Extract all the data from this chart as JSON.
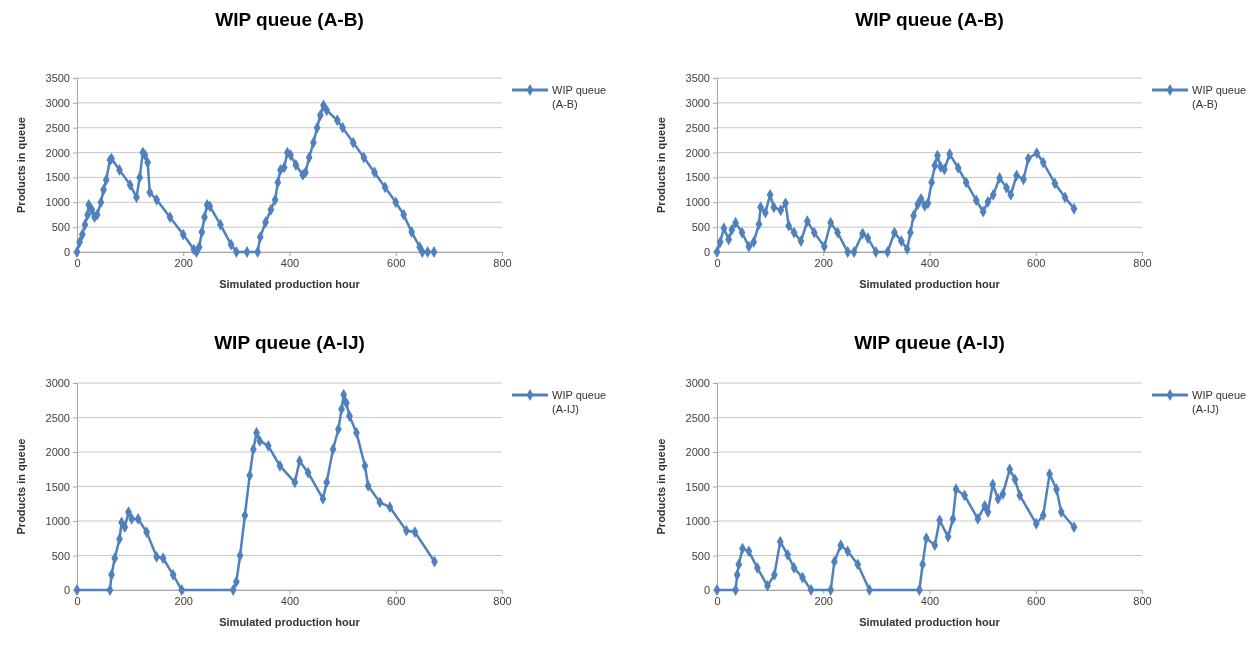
{
  "chart_data": [
    {
      "type": "line",
      "title": "WIP queue (A-B)",
      "xlabel": "Simulated production hour",
      "ylabel": "Products in queue",
      "xlim": [
        0,
        800
      ],
      "ylim": [
        0,
        3500
      ],
      "xticks": [
        0,
        200,
        400,
        600,
        800
      ],
      "yticks": [
        0,
        500,
        1000,
        1500,
        2000,
        2500,
        3000,
        3500
      ],
      "grid": "y",
      "legend": "right",
      "marker": "diamond",
      "x": [
        0,
        5,
        10,
        15,
        20,
        22,
        28,
        33,
        38,
        45,
        50,
        55,
        62,
        65,
        80,
        100,
        112,
        118,
        124,
        128,
        133,
        137,
        150,
        175,
        200,
        220,
        225,
        230,
        235,
        240,
        245,
        250,
        270,
        290,
        300,
        320,
        340,
        345,
        355,
        365,
        373,
        378,
        383,
        390,
        396,
        402,
        412,
        425,
        430,
        437,
        445,
        452,
        458,
        464,
        470,
        490,
        500,
        520,
        540,
        560,
        580,
        600,
        615,
        630,
        645,
        650,
        660,
        672
      ],
      "series": [
        {
          "name": "WIP queue (A-B)",
          "color": "#4f81bd",
          "values": [
            0,
            200,
            350,
            550,
            750,
            950,
            850,
            700,
            750,
            1000,
            1250,
            1450,
            1850,
            1880,
            1650,
            1350,
            1100,
            1500,
            2000,
            1950,
            1800,
            1200,
            1050,
            700,
            350,
            50,
            0,
            100,
            400,
            700,
            950,
            920,
            550,
            150,
            0,
            0,
            0,
            300,
            600,
            850,
            1050,
            1400,
            1650,
            1700,
            2000,
            1950,
            1750,
            1550,
            1600,
            1900,
            2200,
            2500,
            2750,
            2950,
            2850,
            2650,
            2500,
            2200,
            1900,
            1600,
            1300,
            1000,
            750,
            400,
            100,
            0,
            0,
            0
          ]
        }
      ]
    },
    {
      "type": "line",
      "title": "WIP queue (A-B)",
      "xlabel": "Simulated production hour",
      "ylabel": "Products in queue",
      "xlim": [
        0,
        800
      ],
      "ylim": [
        0,
        3500
      ],
      "xticks": [
        0,
        200,
        400,
        600,
        800
      ],
      "yticks": [
        0,
        500,
        1000,
        1500,
        2000,
        2500,
        3000,
        3500
      ],
      "grid": "y",
      "legend": "right",
      "marker": "diamond",
      "x": [
        0,
        6,
        13,
        22,
        28,
        35,
        47,
        60,
        69,
        79,
        82,
        91,
        100,
        107,
        120,
        129,
        135,
        145,
        158,
        170,
        183,
        202,
        214,
        227,
        246,
        258,
        274,
        284,
        299,
        321,
        334,
        347,
        358,
        364,
        370,
        378,
        384,
        391,
        397,
        404,
        410,
        415,
        421,
        428,
        438,
        454,
        469,
        488,
        501,
        510,
        520,
        532,
        545,
        553,
        564,
        577,
        586,
        602,
        614,
        636,
        655,
        672
      ],
      "series": [
        {
          "name": "WIP queue (A-B)",
          "color": "#4f81bd",
          "values": [
            0,
            200,
            480,
            250,
            450,
            590,
            390,
            110,
            200,
            560,
            900,
            790,
            1150,
            900,
            840,
            980,
            530,
            390,
            220,
            620,
            390,
            110,
            590,
            390,
            0,
            0,
            370,
            280,
            0,
            0,
            390,
            220,
            60,
            390,
            730,
            960,
            1070,
            930,
            980,
            1400,
            1740,
            1940,
            1710,
            1660,
            1970,
            1690,
            1400,
            1040,
            810,
            1010,
            1150,
            1490,
            1290,
            1150,
            1540,
            1460,
            1880,
            1990,
            1800,
            1380,
            1100,
            870
          ]
        }
      ]
    },
    {
      "type": "line",
      "title": "WIP queue (A-IJ)",
      "xlabel": "Simulated production hour",
      "ylabel": "Products in queue",
      "xlim": [
        0,
        800
      ],
      "ylim": [
        0,
        3000
      ],
      "xticks": [
        0,
        200,
        400,
        600,
        800
      ],
      "yticks": [
        0,
        500,
        1000,
        1500,
        2000,
        2500,
        3000
      ],
      "grid": "y",
      "legend": "right",
      "marker": "diamond",
      "x": [
        0,
        62,
        65,
        71,
        80,
        84,
        90,
        97,
        103,
        115,
        131,
        150,
        162,
        181,
        197,
        294,
        300,
        307,
        316,
        325,
        332,
        338,
        344,
        360,
        382,
        410,
        419,
        435,
        463,
        470,
        482,
        492,
        498,
        502,
        507,
        513,
        526,
        542,
        548,
        570,
        589,
        620,
        636,
        673
      ],
      "series": [
        {
          "name": "WIP queue (A-IJ)",
          "color": "#4f81bd",
          "values": [
            0,
            0,
            220,
            460,
            740,
            980,
            910,
            1130,
            1030,
            1030,
            840,
            480,
            460,
            220,
            0,
            0,
            120,
            500,
            1080,
            1660,
            2040,
            2280,
            2160,
            2090,
            1800,
            1560,
            1870,
            1700,
            1320,
            1560,
            2040,
            2330,
            2620,
            2830,
            2710,
            2520,
            2280,
            1800,
            1510,
            1270,
            1200,
            860,
            840,
            410
          ]
        }
      ]
    },
    {
      "type": "line",
      "title": "WIP queue (A-IJ)",
      "xlabel": "Simulated production hour",
      "ylabel": "Products in queue",
      "xlim": [
        0,
        800
      ],
      "ylim": [
        0,
        3000
      ],
      "xticks": [
        0,
        200,
        400,
        600,
        800
      ],
      "yticks": [
        0,
        500,
        1000,
        1500,
        2000,
        2500,
        3000
      ],
      "grid": "y",
      "legend": "right",
      "marker": "diamond",
      "x": [
        0,
        35,
        38,
        41,
        48,
        60,
        76,
        95,
        108,
        119,
        133,
        145,
        161,
        177,
        214,
        221,
        233,
        246,
        265,
        287,
        381,
        387,
        394,
        410,
        419,
        435,
        444,
        450,
        466,
        491,
        504,
        510,
        519,
        529,
        538,
        551,
        561,
        570,
        601,
        614,
        626,
        639,
        648,
        672
      ],
      "series": [
        {
          "name": "WIP queue (A-IJ)",
          "color": "#4f81bd",
          "values": [
            0,
            0,
            220,
            370,
            600,
            560,
            320,
            60,
            220,
            700,
            510,
            320,
            180,
            0,
            0,
            410,
            650,
            560,
            370,
            0,
            0,
            370,
            750,
            650,
            1010,
            770,
            1030,
            1460,
            1370,
            1030,
            1220,
            1130,
            1530,
            1320,
            1390,
            1750,
            1600,
            1370,
            960,
            1080,
            1680,
            1460,
            1130,
            910
          ]
        }
      ]
    }
  ]
}
